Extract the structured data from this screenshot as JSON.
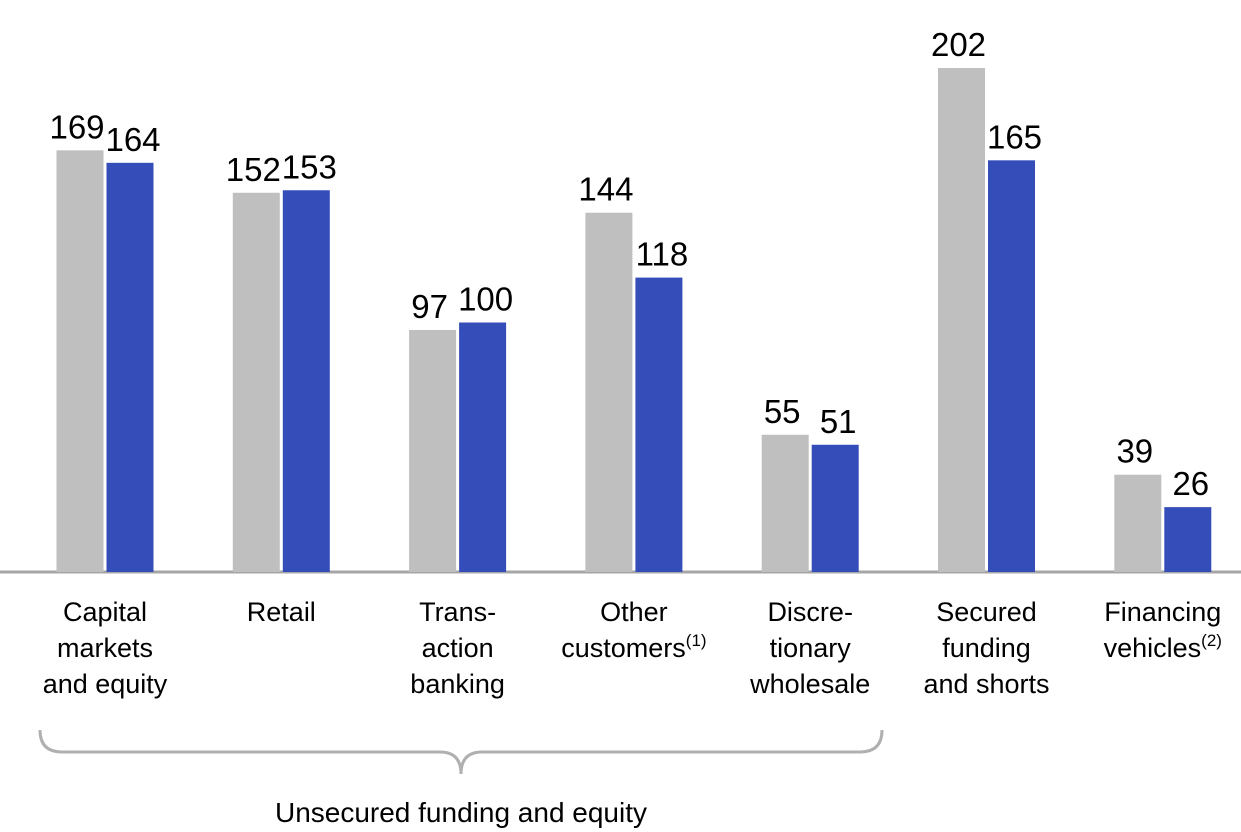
{
  "chart_data": {
    "type": "bar",
    "categories": [
      [
        "Capital",
        "markets",
        "and equity"
      ],
      [
        "Retail"
      ],
      [
        "Trans-",
        "action",
        "banking"
      ],
      [
        "Other",
        "customers"
      ],
      [
        "Discre-",
        "tionary",
        "wholesale"
      ],
      [
        "Secured",
        "funding",
        "and shorts"
      ],
      [
        "Financing",
        "vehicles"
      ]
    ],
    "category_notes": [
      null,
      null,
      null,
      "(1)",
      null,
      null,
      "(2)"
    ],
    "series": [
      {
        "color": "#bfbfbf",
        "values": [
          169,
          152,
          97,
          144,
          55,
          202,
          39
        ]
      },
      {
        "color": "#354db8",
        "values": [
          164,
          153,
          100,
          118,
          51,
          165,
          26
        ]
      }
    ],
    "annotation": "Unsecured funding and equity"
  }
}
